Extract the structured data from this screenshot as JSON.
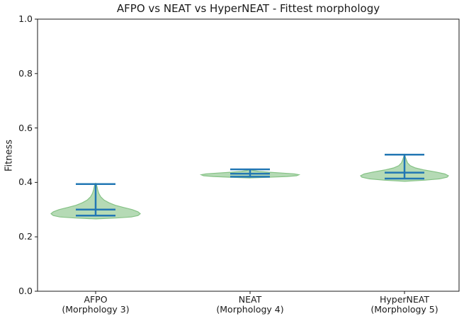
{
  "figure": {
    "background": "#ffffff"
  },
  "chart_data": {
    "type": "violin",
    "title": "AFPO vs NEAT vs HyperNEAT - Fittest morphology",
    "xlabel": "",
    "ylabel": "Fitness",
    "ylim": [
      0.0,
      1.0
    ],
    "yticks": [
      0.0,
      0.2,
      0.4,
      0.6,
      0.8,
      1.0
    ],
    "ytick_labels": [
      "0.0",
      "0.2",
      "0.4",
      "0.6",
      "0.8",
      "1.0"
    ],
    "grid": false,
    "legend_position": "none",
    "colors": {
      "violin_fill": "#b5dab5",
      "violin_edge": "#85c285",
      "stat_lines": "#2277b4",
      "spine": "#1a1a1a",
      "text": "#1a1a1a"
    },
    "series": [
      {
        "name": "AFPO",
        "label_line1": "AFPO",
        "label_line2": "(Morphology 3)",
        "position": 1,
        "min": 0.278,
        "max": 0.394,
        "mean": 0.3,
        "body_span": [
          0.266,
          0.397
        ],
        "profile": [
          [
            0.266,
            0.0
          ],
          [
            0.269,
            0.45
          ],
          [
            0.273,
            0.8
          ],
          [
            0.278,
            0.95
          ],
          [
            0.285,
            1.0
          ],
          [
            0.292,
            0.95
          ],
          [
            0.3,
            0.82
          ],
          [
            0.308,
            0.62
          ],
          [
            0.316,
            0.44
          ],
          [
            0.325,
            0.3
          ],
          [
            0.335,
            0.19
          ],
          [
            0.347,
            0.115
          ],
          [
            0.36,
            0.07
          ],
          [
            0.374,
            0.045
          ],
          [
            0.385,
            0.03
          ],
          [
            0.394,
            0.012
          ],
          [
            0.397,
            0.0
          ]
        ]
      },
      {
        "name": "NEAT",
        "label_line1": "NEAT",
        "label_line2": "(Morphology 4)",
        "position": 2,
        "min": 0.421,
        "max": 0.448,
        "mean": 0.432,
        "body_span": [
          0.4165,
          0.449
        ],
        "profile": [
          [
            0.4165,
            0.0
          ],
          [
            0.419,
            0.4
          ],
          [
            0.4215,
            0.75
          ],
          [
            0.4245,
            0.95
          ],
          [
            0.428,
            1.0
          ],
          [
            0.4315,
            0.9
          ],
          [
            0.4345,
            0.65
          ],
          [
            0.4375,
            0.38
          ],
          [
            0.4405,
            0.18
          ],
          [
            0.4435,
            0.07
          ],
          [
            0.4465,
            0.025
          ],
          [
            0.449,
            0.0
          ]
        ]
      },
      {
        "name": "HyperNEAT",
        "label_line1": "HyperNEAT",
        "label_line2": "(Morphology 5)",
        "position": 3,
        "min": 0.414,
        "max": 0.502,
        "mean": 0.436,
        "body_span": [
          0.404,
          0.502
        ],
        "profile": [
          [
            0.404,
            0.0
          ],
          [
            0.408,
            0.45
          ],
          [
            0.413,
            0.8
          ],
          [
            0.419,
            0.97
          ],
          [
            0.4245,
            1.0
          ],
          [
            0.431,
            0.92
          ],
          [
            0.438,
            0.72
          ],
          [
            0.4455,
            0.45
          ],
          [
            0.453,
            0.25
          ],
          [
            0.4615,
            0.13
          ],
          [
            0.4715,
            0.07
          ],
          [
            0.483,
            0.04
          ],
          [
            0.493,
            0.02
          ],
          [
            0.502,
            0.0
          ]
        ]
      }
    ]
  }
}
